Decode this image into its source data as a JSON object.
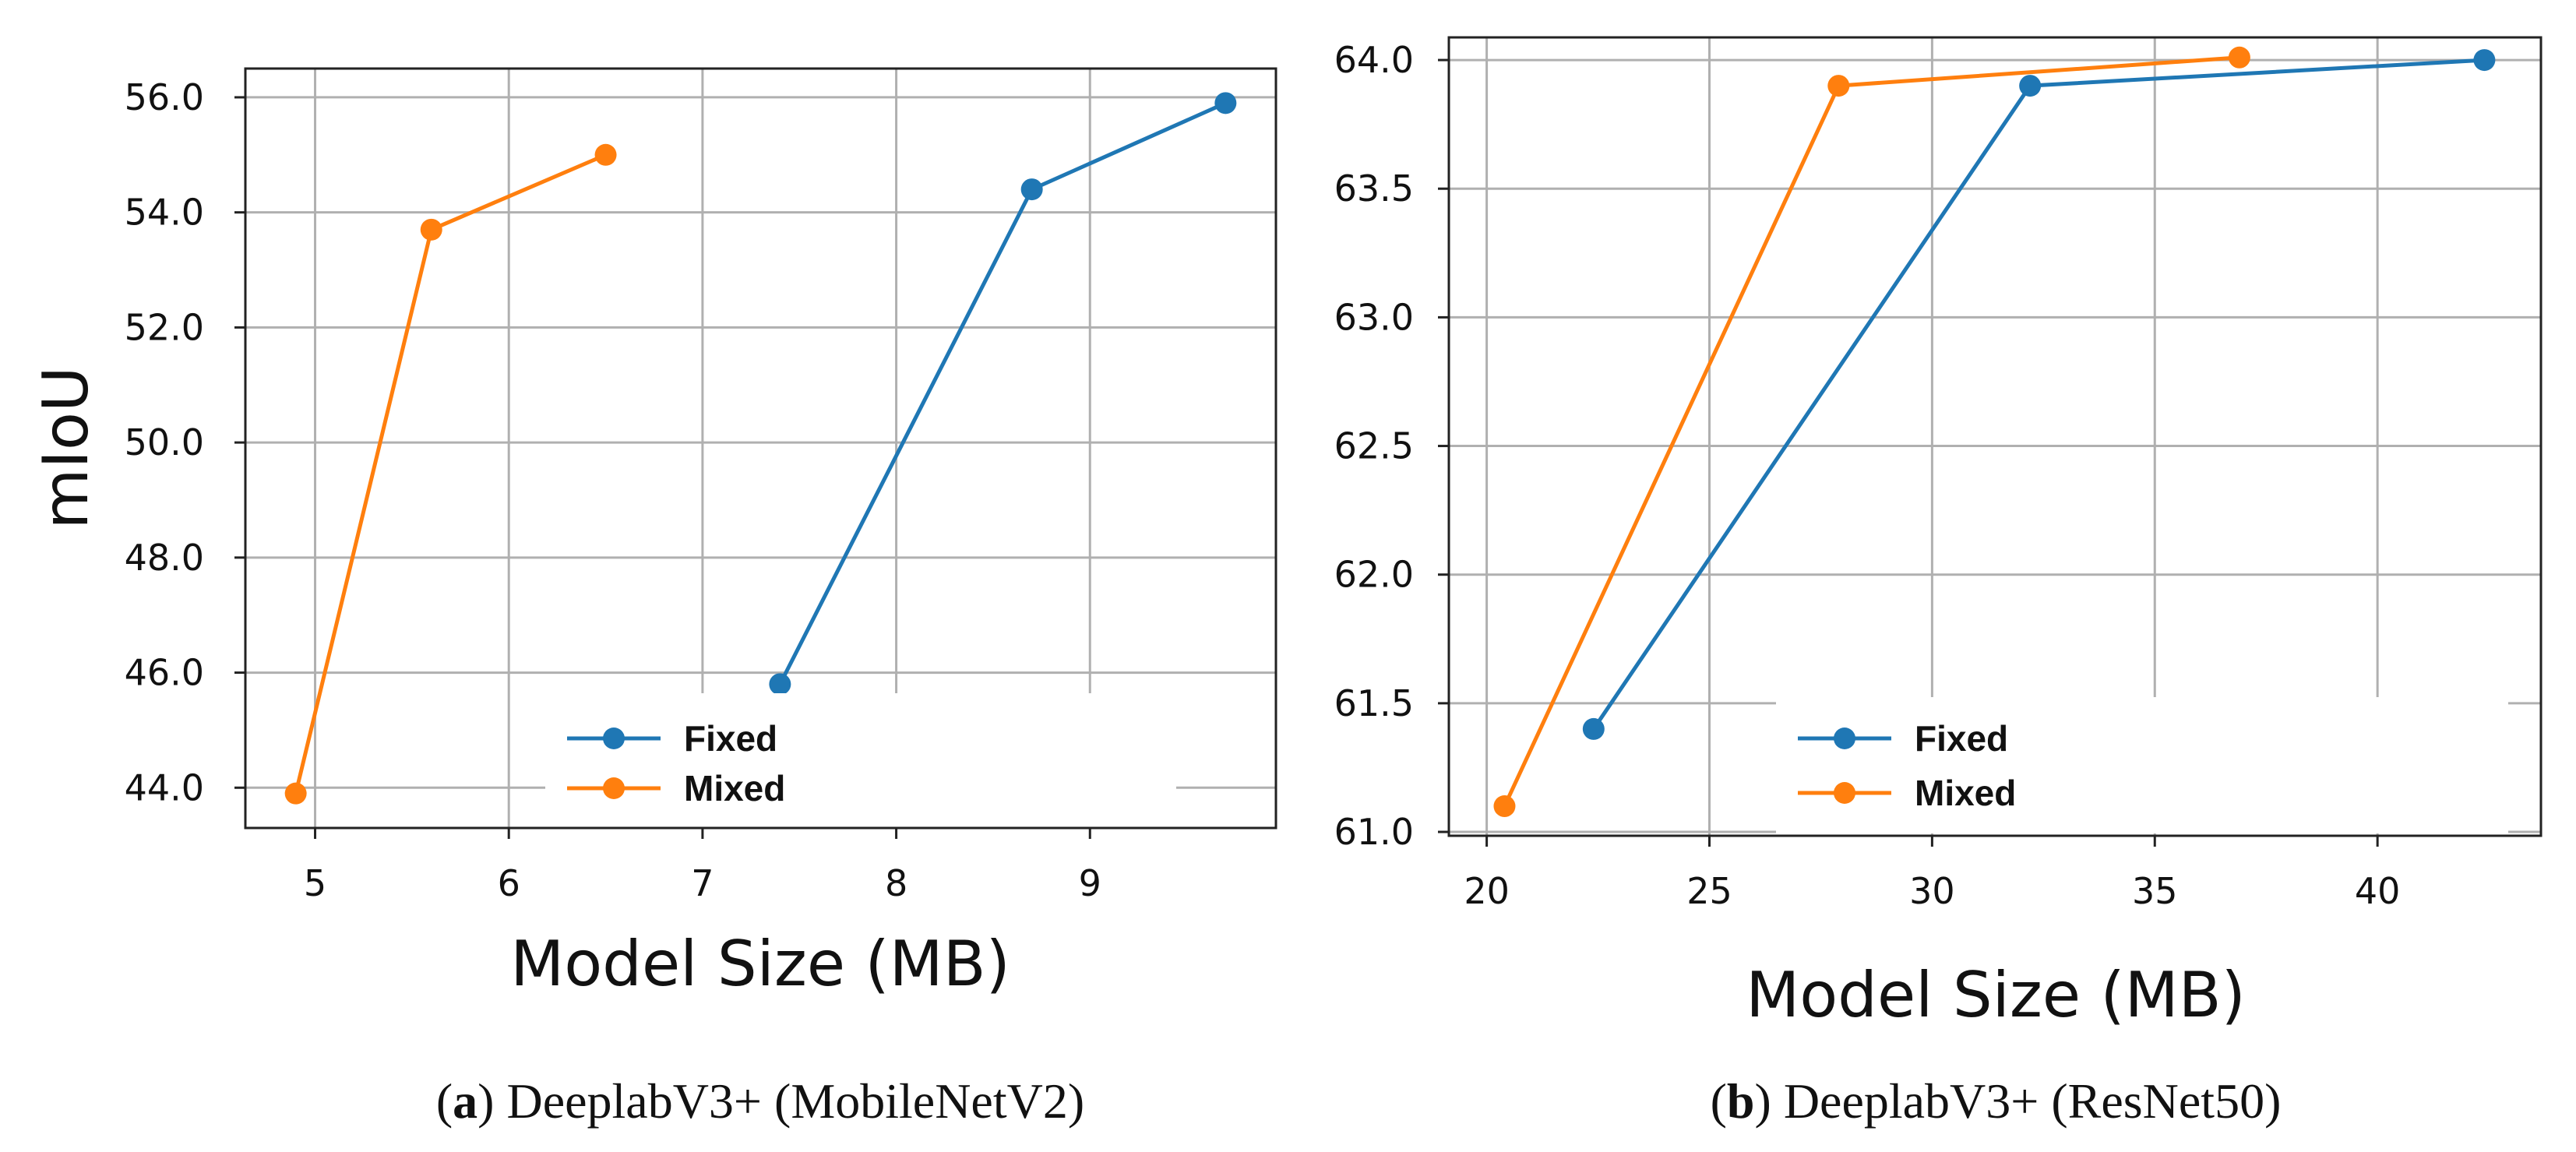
{
  "chart_data": [
    {
      "type": "line",
      "title": "",
      "xlabel": "Model Size (MB)",
      "ylabel": "mIoU",
      "xlim": [
        4.64,
        9.96
      ],
      "ylim": [
        43.3,
        56.5
      ],
      "x_ticks": [
        5,
        6,
        7,
        8,
        9
      ],
      "x_tick_labels": [
        "5",
        "6",
        "7",
        "8",
        "9"
      ],
      "y_ticks": [
        44,
        46,
        48,
        50,
        52,
        54,
        56
      ],
      "y_tick_labels": [
        "44.0",
        "46.0",
        "48.0",
        "50.0",
        "52.0",
        "54.0",
        "56.0"
      ],
      "grid": true,
      "legend_position": "lower-center",
      "series": [
        {
          "name": "Fixed",
          "color": "#1f77b4",
          "x": [
            7.4,
            8.7,
            9.7
          ],
          "y": [
            45.8,
            54.4,
            55.9
          ]
        },
        {
          "name": "Mixed",
          "color": "#ff7f0e",
          "x": [
            4.9,
            5.6,
            6.5
          ],
          "y": [
            43.9,
            53.7,
            55.0
          ]
        }
      ],
      "caption_label": "a",
      "caption_text": "DeeplabV3+ (MobileNetV2)"
    },
    {
      "type": "line",
      "title": "",
      "xlabel": "Model Size (MB)",
      "ylabel": "",
      "xlim": [
        19.15,
        43.67
      ],
      "ylim": [
        60.985,
        64.088
      ],
      "x_ticks": [
        20,
        25,
        30,
        35,
        40
      ],
      "x_tick_labels": [
        "20",
        "25",
        "30",
        "35",
        "40"
      ],
      "y_ticks": [
        61.0,
        61.5,
        62.0,
        62.5,
        63.0,
        63.5,
        64.0
      ],
      "y_tick_labels": [
        "61.0",
        "61.5",
        "62.0",
        "62.5",
        "63.0",
        "63.5",
        "64.0"
      ],
      "grid": true,
      "legend_position": "lower-right",
      "series": [
        {
          "name": "Fixed",
          "color": "#1f77b4",
          "x": [
            22.4,
            32.2,
            42.4
          ],
          "y": [
            61.4,
            63.9,
            64.0
          ]
        },
        {
          "name": "Mixed",
          "color": "#ff7f0e",
          "x": [
            20.4,
            27.9,
            36.9
          ],
          "y": [
            61.1,
            63.9,
            64.01
          ]
        }
      ],
      "caption_label": "b",
      "caption_text": "DeeplabV3+ (ResNet50)"
    }
  ]
}
